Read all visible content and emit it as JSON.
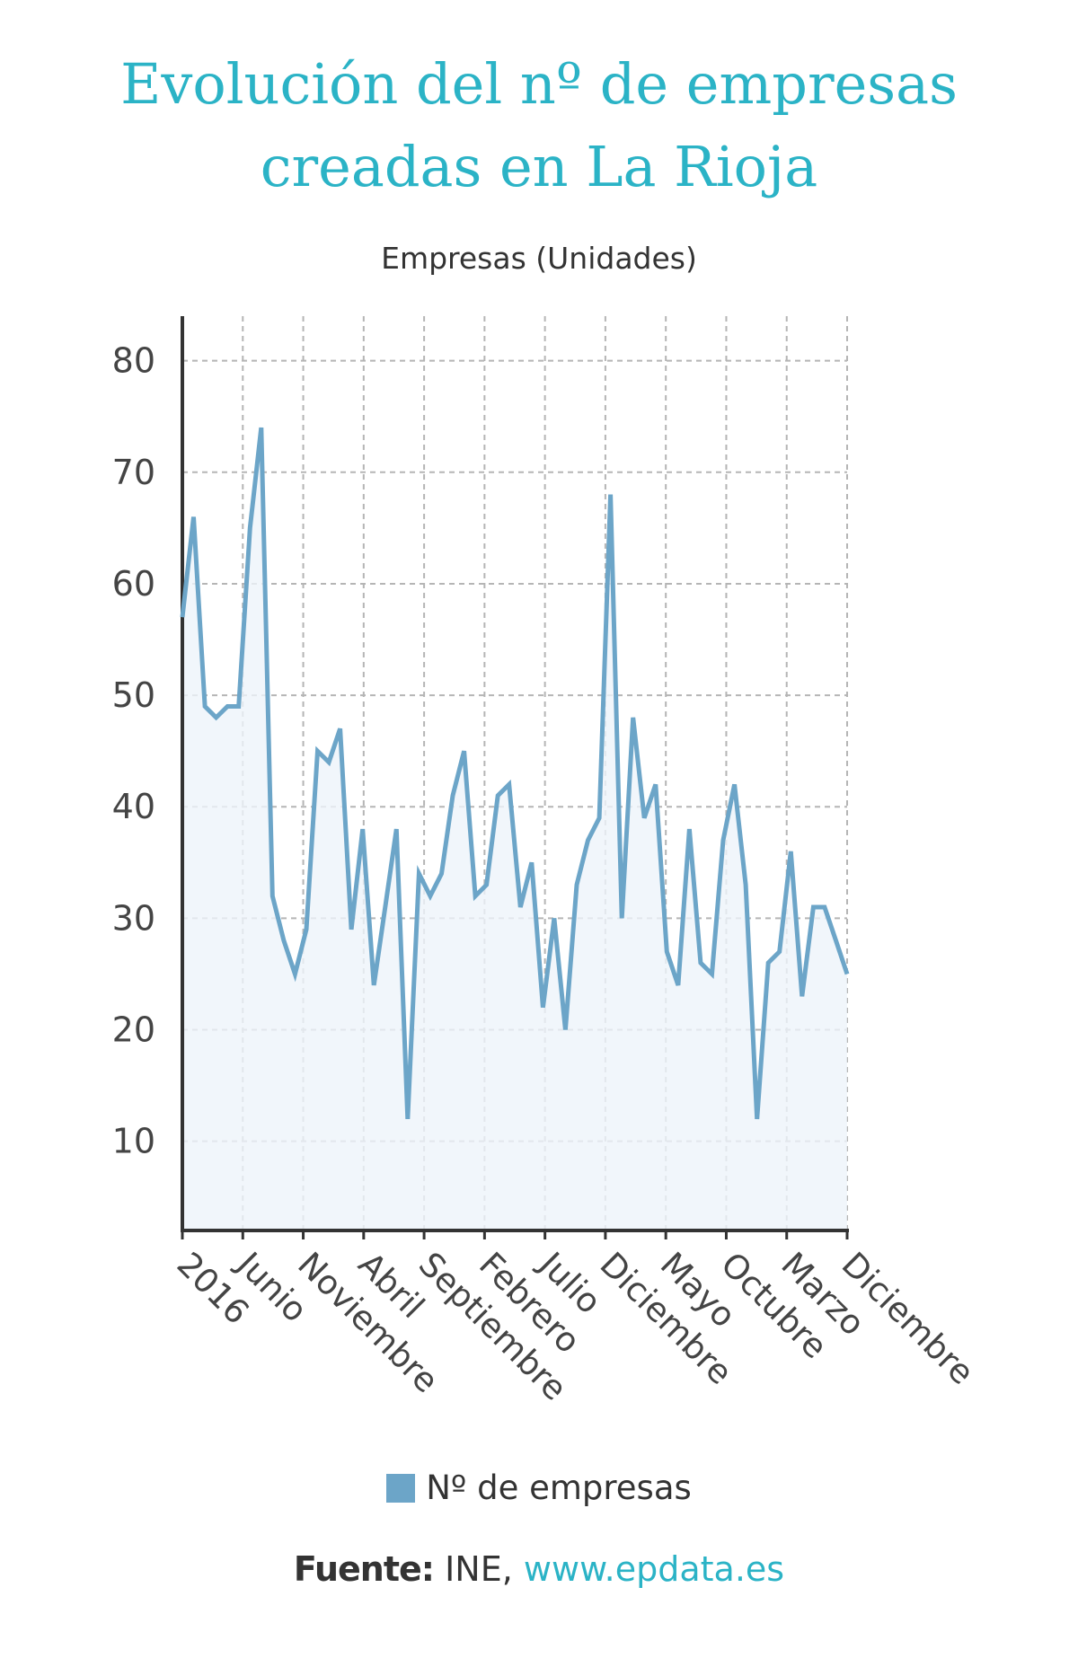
{
  "title_line1": "Evolución del nº de empresas",
  "title_line2": "creadas en La Rioja",
  "colors": {
    "title": "#2bb3c6",
    "series": "#6ca5c8",
    "fill": "#eef4fa",
    "grid": "#b5b5b5"
  },
  "chart_data": {
    "type": "area",
    "ylabel": "Empresas (Unidades)",
    "ylim": [
      2,
      84
    ],
    "yticks": [
      10,
      20,
      30,
      40,
      50,
      60,
      70,
      80
    ],
    "grid": true,
    "legend_position": "bottom",
    "x_labels": [
      "2016",
      "Junio",
      "Noviembre",
      "Abril",
      "Septiembre",
      "Febrero",
      "Julio",
      "Diciembre",
      "Mayo",
      "Octubre",
      "Marzo",
      "Diciembre"
    ],
    "series": [
      {
        "name": "Nº de empresas",
        "values": [
          57,
          66,
          49,
          48,
          49,
          49,
          65,
          74,
          32,
          28,
          25,
          29,
          45,
          44,
          47,
          29,
          38,
          24,
          31,
          38,
          12,
          34,
          32,
          34,
          41,
          45,
          32,
          33,
          41,
          42,
          31,
          35,
          22,
          30,
          20,
          33,
          37,
          39,
          68,
          30,
          48,
          39,
          42,
          27,
          24,
          38,
          26,
          25,
          37,
          42,
          33,
          12,
          26,
          27,
          36,
          23,
          31,
          31,
          28,
          25
        ]
      }
    ]
  },
  "legend": {
    "label": "Nº de empresas"
  },
  "source": {
    "label": "Fuente:",
    "org": "INE,",
    "url": "www.epdata.es"
  }
}
